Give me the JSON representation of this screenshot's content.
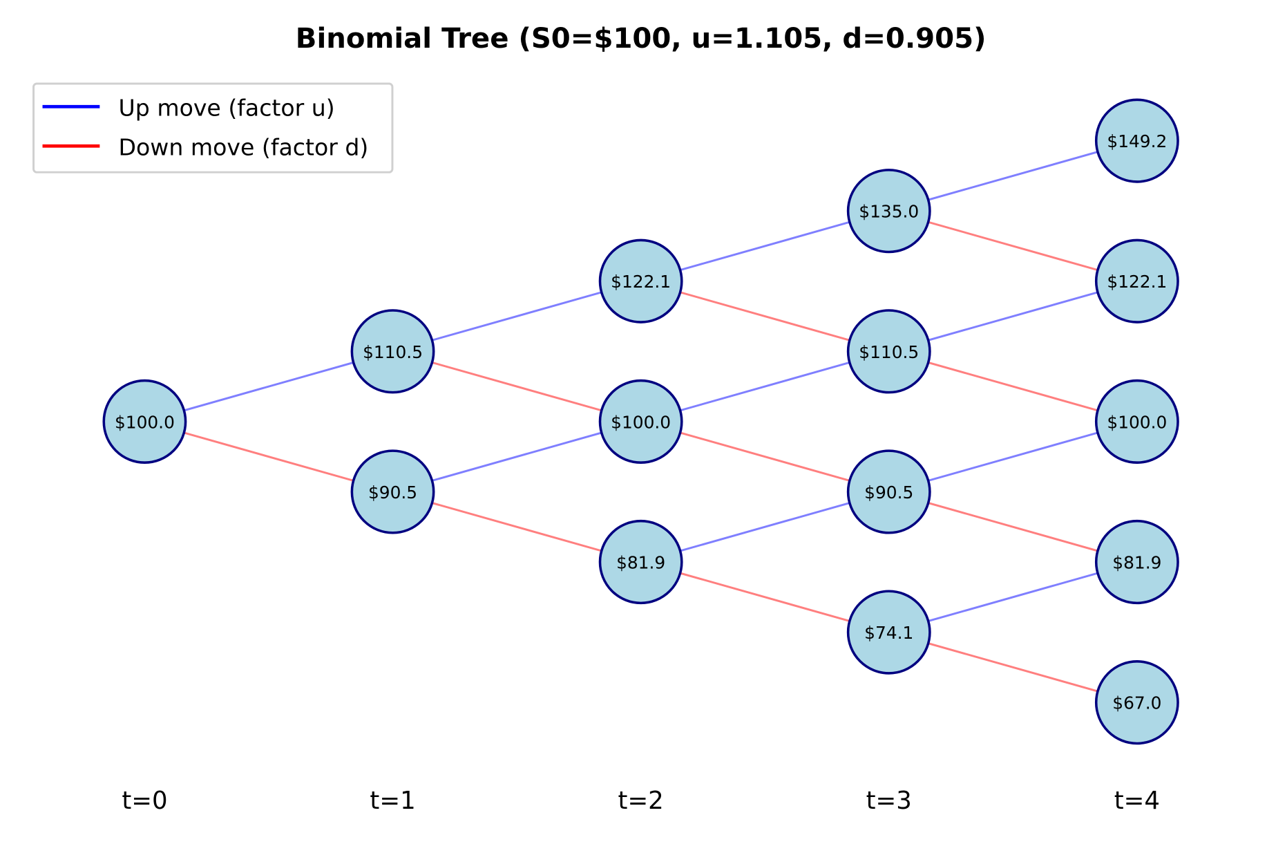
{
  "title": "Binomial Tree (S0=$100, u=1.105, d=0.905)",
  "legend": {
    "placement": "top-left",
    "items": [
      {
        "label": "Up move (factor u)",
        "color": "#0000ff"
      },
      {
        "label": "Down move (factor d)",
        "color": "#ff0000"
      }
    ]
  },
  "colors": {
    "up_edge": "#7f7fff",
    "down_edge": "#ff7f7f",
    "node_fill": "#add8e6",
    "node_stroke": "#000080"
  },
  "tree": {
    "S0": 100,
    "u": 1.105,
    "d": 0.905,
    "steps": [
      {
        "label": "t=0",
        "nodes": [
          "$100.0"
        ]
      },
      {
        "label": "t=1",
        "nodes": [
          "$110.5",
          "$90.5"
        ]
      },
      {
        "label": "t=2",
        "nodes": [
          "$122.1",
          "$100.0",
          "$81.9"
        ]
      },
      {
        "label": "t=3",
        "nodes": [
          "$135.0",
          "$110.5",
          "$90.5",
          "$74.1"
        ]
      },
      {
        "label": "t=4",
        "nodes": [
          "$149.2",
          "$122.1",
          "$100.0",
          "$81.9",
          "$67.0"
        ]
      }
    ]
  }
}
